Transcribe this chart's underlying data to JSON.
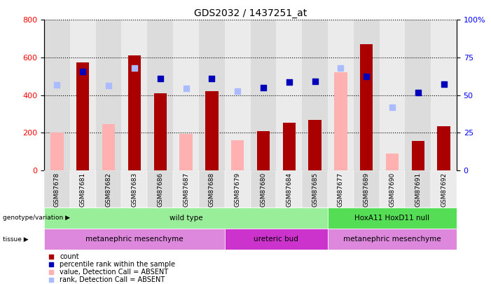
{
  "title": "GDS2032 / 1437251_at",
  "samples": [
    "GSM87678",
    "GSM87681",
    "GSM87682",
    "GSM87683",
    "GSM87686",
    "GSM87687",
    "GSM87688",
    "GSM87679",
    "GSM87680",
    "GSM87684",
    "GSM87685",
    "GSM87677",
    "GSM87689",
    "GSM87690",
    "GSM87691",
    "GSM87692"
  ],
  "count": [
    0,
    575,
    0,
    610,
    410,
    0,
    420,
    0,
    210,
    255,
    270,
    0,
    670,
    0,
    155,
    235
  ],
  "count_absent": [
    200,
    0,
    245,
    0,
    0,
    195,
    0,
    160,
    0,
    0,
    0,
    520,
    0,
    90,
    0,
    0
  ],
  "percentile_rank": [
    0,
    525,
    0,
    0,
    490,
    0,
    490,
    0,
    440,
    470,
    475,
    0,
    500,
    0,
    415,
    460
  ],
  "percentile_rank_absent": [
    455,
    0,
    450,
    545,
    0,
    435,
    0,
    420,
    0,
    0,
    0,
    545,
    0,
    335,
    0,
    0
  ],
  "ylim_left": [
    0,
    800
  ],
  "yticks_left": [
    0,
    200,
    400,
    600,
    800
  ],
  "yticks_right": [
    0,
    25,
    50,
    75,
    100
  ],
  "bar_color_dark_red": "#AA0000",
  "bar_color_pink": "#FFB0B0",
  "dot_color_blue": "#0000BB",
  "dot_color_lightblue": "#AABBFF",
  "col_bg_even": "#DCDCDC",
  "col_bg_odd": "#EBEBEB",
  "genotype_groups": [
    {
      "label": "wild type",
      "start": 0,
      "end": 11,
      "color": "#99EE99"
    },
    {
      "label": "HoxA11 HoxD11 null",
      "start": 11,
      "end": 16,
      "color": "#55DD55"
    }
  ],
  "tissue_groups": [
    {
      "label": "metanephric mesenchyme",
      "start": 0,
      "end": 7,
      "color": "#DD88DD"
    },
    {
      "label": "ureteric bud",
      "start": 7,
      "end": 11,
      "color": "#CC33CC"
    },
    {
      "label": "metanephric mesenchyme",
      "start": 11,
      "end": 16,
      "color": "#DD88DD"
    }
  ],
  "legend_labels": [
    "count",
    "percentile rank within the sample",
    "value, Detection Call = ABSENT",
    "rank, Detection Call = ABSENT"
  ],
  "legend_colors": [
    "#AA0000",
    "#0000BB",
    "#FFB0B0",
    "#AABBFF"
  ]
}
